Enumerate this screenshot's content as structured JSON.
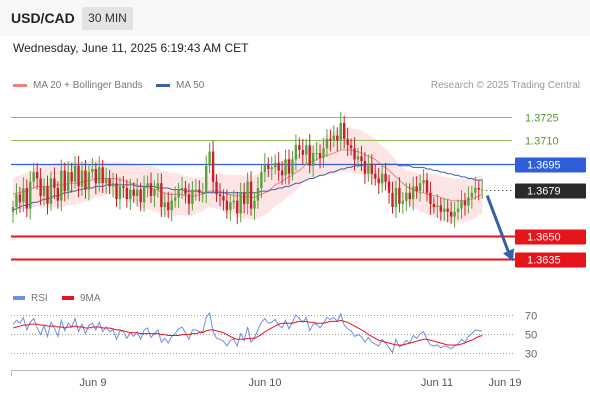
{
  "header": {
    "symbol": "USD/CAD",
    "timeframe": "30 MIN",
    "datetime": "Wednesday, June 11, 2025 6:19:43 AM CET"
  },
  "legend": {
    "ma20": "MA 20 + Bollinger Bands",
    "ma50": "MA 50",
    "credit": "Research © 2025 Trading Central"
  },
  "colors": {
    "bull": "#5aa03c",
    "bear": "#c8202a",
    "ma20": "#f08080",
    "ma50": "#3c5fa8",
    "band": "#fde0e0",
    "resistance": "#8cc05a",
    "current": "#2f5fd8",
    "support": "#e5151b",
    "rsi": "#6e8fe8",
    "rsi_ma": "#e5151b",
    "arrow": "#3560a6"
  },
  "chart_data": [
    {
      "type": "candlestick",
      "yrange": [
        1.3622,
        1.3738
      ],
      "x_ticks": [
        "Jun 9",
        "Jun 10",
        "Jun 11",
        "Jun 19"
      ],
      "levels": [
        {
          "label": "1.3725",
          "value": 1.3725,
          "kind": "resistance"
        },
        {
          "label": "1.3710",
          "value": 1.371,
          "kind": "resistance"
        },
        {
          "label": "1.3695",
          "value": 1.3695,
          "kind": "pivot"
        },
        {
          "label": "1.3679",
          "value": 1.3679,
          "kind": "current"
        },
        {
          "label": "1.3650",
          "value": 1.365,
          "kind": "support"
        },
        {
          "label": "1.3635",
          "value": 1.3635,
          "kind": "support"
        }
      ],
      "forecast": {
        "from": 1.3679,
        "to": 1.3635
      },
      "closes": [
        1.3668,
        1.3676,
        1.3671,
        1.368,
        1.3667,
        1.3684,
        1.369,
        1.3686,
        1.3675,
        1.3681,
        1.367,
        1.3686,
        1.368,
        1.3672,
        1.3691,
        1.3678,
        1.369,
        1.3684,
        1.3694,
        1.3681,
        1.3691,
        1.3679,
        1.369,
        1.3692,
        1.3683,
        1.3693,
        1.3683,
        1.3686,
        1.3681,
        1.3683,
        1.3673,
        1.3681,
        1.368,
        1.3673,
        1.3679,
        1.3675,
        1.3679,
        1.3671,
        1.3681,
        1.3683,
        1.3675,
        1.3679,
        1.3683,
        1.3668,
        1.3671,
        1.3666,
        1.3672,
        1.3674,
        1.3679,
        1.368,
        1.3676,
        1.367,
        1.3679,
        1.3679,
        1.3677,
        1.3677,
        1.3694,
        1.3703,
        1.3684,
        1.3676,
        1.3675,
        1.3672,
        1.3666,
        1.3671,
        1.3672,
        1.3664,
        1.3677,
        1.367,
        1.3684,
        1.3667,
        1.3672,
        1.368,
        1.369,
        1.3695,
        1.3692,
        1.3693,
        1.3696,
        1.3691,
        1.3688,
        1.3698,
        1.3689,
        1.3698,
        1.3707,
        1.3704,
        1.3701,
        1.3707,
        1.3694,
        1.3702,
        1.3702,
        1.3699,
        1.3705,
        1.3711,
        1.371,
        1.3713,
        1.371,
        1.3721,
        1.3711,
        1.3707,
        1.3705,
        1.3698,
        1.37,
        1.3697,
        1.3689,
        1.3695,
        1.3689,
        1.3686,
        1.3683,
        1.3689,
        1.3684,
        1.3677,
        1.3668,
        1.368,
        1.367,
        1.3672,
        1.3677,
        1.3673,
        1.3681,
        1.3678,
        1.3683,
        1.3685,
        1.3677,
        1.367,
        1.3668,
        1.3669,
        1.3665,
        1.3667,
        1.3665,
        1.3662,
        1.3665,
        1.3667,
        1.3672,
        1.3669,
        1.3674,
        1.3677,
        1.368,
        1.3679,
        1.3679
      ],
      "ma20": [
        1.3676,
        1.3677,
        1.3677,
        1.3678,
        1.3678,
        1.3679,
        1.368,
        1.3681,
        1.3681,
        1.3681,
        1.3681,
        1.3681,
        1.3682,
        1.3682,
        1.3682,
        1.3682,
        1.3683,
        1.3683,
        1.3683,
        1.3683,
        1.3684,
        1.3684,
        1.3685,
        1.3685,
        1.3686,
        1.3686,
        1.3686,
        1.3686,
        1.3686,
        1.3686,
        1.3686,
        1.3685,
        1.3685,
        1.3684,
        1.3683,
        1.3683,
        1.3682,
        1.3681,
        1.3681,
        1.368,
        1.368,
        1.3679,
        1.3679,
        1.3677,
        1.3677,
        1.3676,
        1.3676,
        1.3676,
        1.3676,
        1.3676,
        1.3675,
        1.3675,
        1.3675,
        1.3675,
        1.3676,
        1.3676,
        1.3677,
        1.3678,
        1.3678,
        1.3678,
        1.3678,
        1.3677,
        1.3676,
        1.3676,
        1.3675,
        1.3675,
        1.3675,
        1.3674,
        1.3675,
        1.3674,
        1.3674,
        1.3675,
        1.3676,
        1.3677,
        1.3678,
        1.368,
        1.3682,
        1.3683,
        1.3684,
        1.3686,
        1.3687,
        1.3688,
        1.369,
        1.3691,
        1.3693,
        1.3695,
        1.3696,
        1.3697,
        1.3698,
        1.3699,
        1.37,
        1.3701,
        1.3701,
        1.3702,
        1.3703,
        1.3704,
        1.3704,
        1.3704,
        1.3704,
        1.3703,
        1.3703,
        1.3702,
        1.3701,
        1.37,
        1.3699,
        1.3698,
        1.3696,
        1.3694,
        1.3693,
        1.3691,
        1.3689,
        1.3687,
        1.3685,
        1.3683,
        1.3681,
        1.368,
        1.3679,
        1.3678,
        1.3677,
        1.3677,
        1.3676,
        1.3676,
        1.3675,
        1.3675,
        1.3674,
        1.3673,
        1.3673,
        1.3672,
        1.3672,
        1.3672,
        1.3672,
        1.3672,
        1.3673,
        1.3673,
        1.3674,
        1.3675,
        1.3676
      ],
      "ma50": [
        1.3666,
        1.3667,
        1.3668,
        1.3669,
        1.3669,
        1.367,
        1.3671,
        1.3671,
        1.3672,
        1.3673,
        1.3673,
        1.3674,
        1.3675,
        1.3675,
        1.3676,
        1.3677,
        1.3677,
        1.3678,
        1.3678,
        1.3679,
        1.3679,
        1.368,
        1.368,
        1.368,
        1.3681,
        1.3681,
        1.3681,
        1.3682,
        1.3682,
        1.3682,
        1.3682,
        1.3682,
        1.3682,
        1.3682,
        1.3682,
        1.3682,
        1.3681,
        1.3681,
        1.3681,
        1.3681,
        1.3681,
        1.3681,
        1.368,
        1.368,
        1.368,
        1.368,
        1.3679,
        1.3679,
        1.3679,
        1.3679,
        1.3678,
        1.3678,
        1.3678,
        1.3678,
        1.3678,
        1.3677,
        1.3677,
        1.3677,
        1.3677,
        1.3677,
        1.3677,
        1.3677,
        1.3677,
        1.3677,
        1.3677,
        1.3677,
        1.3677,
        1.3677,
        1.3677,
        1.3677,
        1.3677,
        1.3677,
        1.3678,
        1.3678,
        1.3678,
        1.3679,
        1.3679,
        1.368,
        1.368,
        1.3681,
        1.3681,
        1.3682,
        1.3683,
        1.3683,
        1.3684,
        1.3685,
        1.3686,
        1.3686,
        1.3687,
        1.3688,
        1.3688,
        1.3689,
        1.369,
        1.369,
        1.3691,
        1.3692,
        1.3692,
        1.3693,
        1.3693,
        1.3694,
        1.3694,
        1.3694,
        1.3695,
        1.3695,
        1.3695,
        1.3695,
        1.3695,
        1.3695,
        1.3695,
        1.3695,
        1.3695,
        1.3695,
        1.3694,
        1.3694,
        1.3694,
        1.3694,
        1.3693,
        1.3693,
        1.3693,
        1.3693,
        1.3692,
        1.3692,
        1.3691,
        1.3691,
        1.369,
        1.369,
        1.3689,
        1.3689,
        1.3688,
        1.3688,
        1.3687,
        1.3687,
        1.3686,
        1.3686,
        1.3685,
        1.3685,
        1.3685
      ],
      "bands": {
        "spread": 0.0014
      }
    },
    {
      "type": "line",
      "series": [
        {
          "name": "RSI",
          "color": "#6e8fe8"
        },
        {
          "name": "9MA",
          "color": "#e5151b"
        }
      ],
      "y_ticks": [
        70,
        50,
        30
      ],
      "yrange": [
        20,
        75
      ],
      "rsi": [
        60,
        64,
        61,
        67,
        54,
        62,
        66,
        56,
        49,
        58,
        47,
        62,
        56,
        47,
        64,
        53,
        61,
        57,
        66,
        52,
        60,
        50,
        59,
        61,
        54,
        62,
        52,
        57,
        52,
        54,
        44,
        53,
        52,
        45,
        51,
        47,
        52,
        44,
        54,
        56,
        46,
        50,
        54,
        41,
        45,
        40,
        47,
        50,
        55,
        57,
        51,
        44,
        54,
        54,
        52,
        52,
        67,
        72,
        52,
        45,
        44,
        42,
        37,
        43,
        44,
        37,
        50,
        43,
        57,
        41,
        46,
        54,
        62,
        66,
        61,
        62,
        65,
        59,
        56,
        64,
        55,
        62,
        70,
        66,
        62,
        67,
        53,
        60,
        60,
        56,
        61,
        67,
        65,
        67,
        63,
        71,
        59,
        55,
        53,
        47,
        49,
        47,
        41,
        46,
        41,
        39,
        37,
        44,
        40,
        35,
        30,
        44,
        36,
        38,
        43,
        40,
        48,
        45,
        50,
        52,
        44,
        38,
        37,
        38,
        35,
        37,
        36,
        34,
        37,
        39,
        44,
        41,
        47,
        50,
        54,
        53,
        53
      ],
      "ma9": [
        56,
        57,
        58,
        59,
        59,
        60,
        60,
        60,
        59,
        59,
        58,
        58,
        58,
        57,
        57,
        56,
        57,
        57,
        58,
        57,
        57,
        56,
        56,
        57,
        57,
        57,
        56,
        56,
        56,
        55,
        54,
        54,
        53,
        52,
        51,
        51,
        51,
        50,
        50,
        50,
        50,
        50,
        50,
        49,
        49,
        48,
        48,
        48,
        48,
        49,
        49,
        49,
        50,
        50,
        51,
        51,
        53,
        54,
        54,
        53,
        52,
        51,
        49,
        47,
        45,
        44,
        44,
        44,
        45,
        45,
        45,
        47,
        49,
        52,
        54,
        56,
        58,
        60,
        61,
        61,
        61,
        61,
        62,
        63,
        63,
        63,
        62,
        62,
        61,
        61,
        61,
        62,
        63,
        63,
        63,
        64,
        63,
        62,
        60,
        58,
        56,
        54,
        52,
        49,
        47,
        45,
        43,
        42,
        41,
        40,
        39,
        38,
        38,
        38,
        39,
        40,
        41,
        42,
        43,
        44,
        44,
        43,
        42,
        41,
        40,
        39,
        38,
        38,
        38,
        38,
        39,
        40,
        42,
        43,
        45,
        47,
        48
      ]
    }
  ]
}
